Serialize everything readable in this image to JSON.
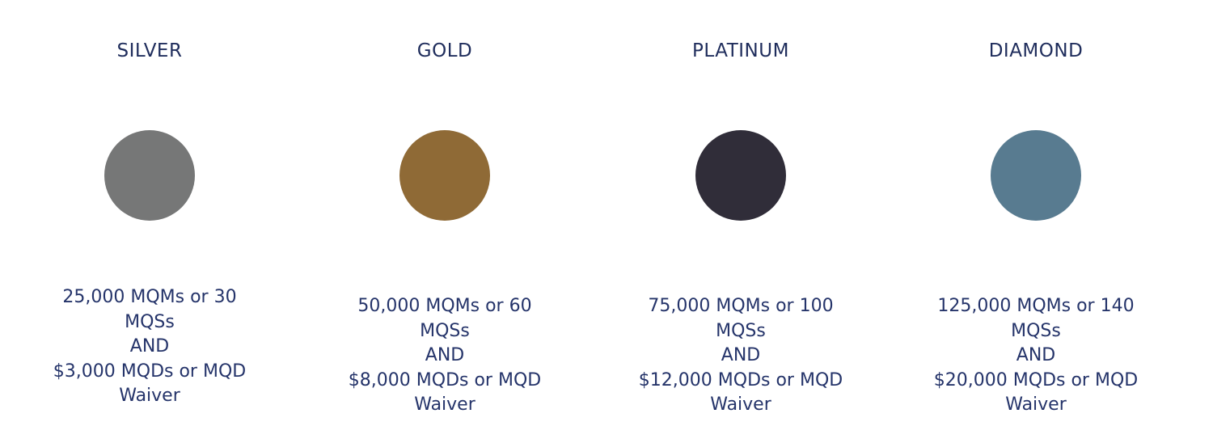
{
  "tiers": [
    {
      "name": "SILVER",
      "requirements": [
        "25,000 MQMs or 30",
        "MQSs",
        "AND",
        "$3,000 MQDs or MQD",
        "Waiver"
      ]
    },
    {
      "name": "GOLD",
      "requirements": [
        "50,000 MQMs or 60",
        "MQSs",
        "AND",
        "$8,000 MQDs or MQD",
        "Waiver"
      ]
    },
    {
      "name": "PLATINUM",
      "requirements": [
        "75,000 MQMs or 100",
        "MQSs",
        "AND",
        "$12,000 MQDs or MQD",
        "Waiver"
      ]
    },
    {
      "name": "DIAMOND",
      "requirements": [
        "125,000 MQMs or 140",
        "MQSs",
        "AND",
        "$20,000 MQDs or MQD",
        "Waiver"
      ]
    }
  ]
}
